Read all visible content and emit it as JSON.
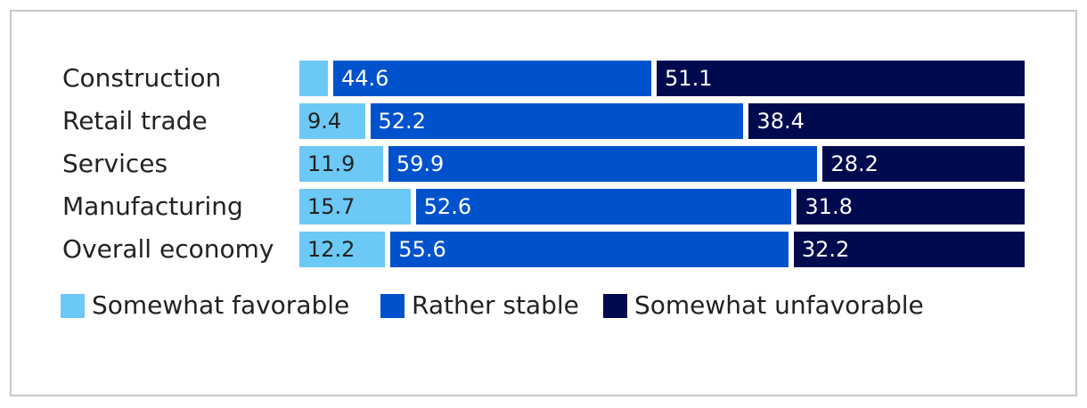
{
  "chart_data": {
    "type": "bar",
    "orientation": "horizontal",
    "stacked": true,
    "percent_stacked": true,
    "categories": [
      "Construction",
      "Retail trade",
      "Services",
      "Manufacturing",
      "Overall economy"
    ],
    "series": [
      {
        "name": "Somewhat favorable",
        "color": "#6cc8f5",
        "values": [
          4.3,
          9.4,
          11.9,
          15.7,
          12.2
        ],
        "labels": [
          "",
          "9.4",
          "11.9",
          "15.7",
          "12.2"
        ]
      },
      {
        "name": "Rather stable",
        "color": "#0052cc",
        "values": [
          44.6,
          52.2,
          59.9,
          52.6,
          55.6
        ],
        "labels": [
          "44.6",
          "52.2",
          "59.9",
          "52.6",
          "55.6"
        ]
      },
      {
        "name": "Somewhat unfavorable",
        "color": "#000b4f",
        "values": [
          51.1,
          38.4,
          28.2,
          31.8,
          32.2
        ],
        "labels": [
          "51.1",
          "38.4",
          "28.2",
          "31.8",
          "32.2"
        ]
      }
    ],
    "xlim": [
      0,
      100
    ],
    "label_colors": [
      "#222222",
      "#ffffff",
      "#ffffff"
    ],
    "legend_position": "bottom-left",
    "grid": false,
    "title": "",
    "xlabel": "",
    "ylabel": ""
  }
}
